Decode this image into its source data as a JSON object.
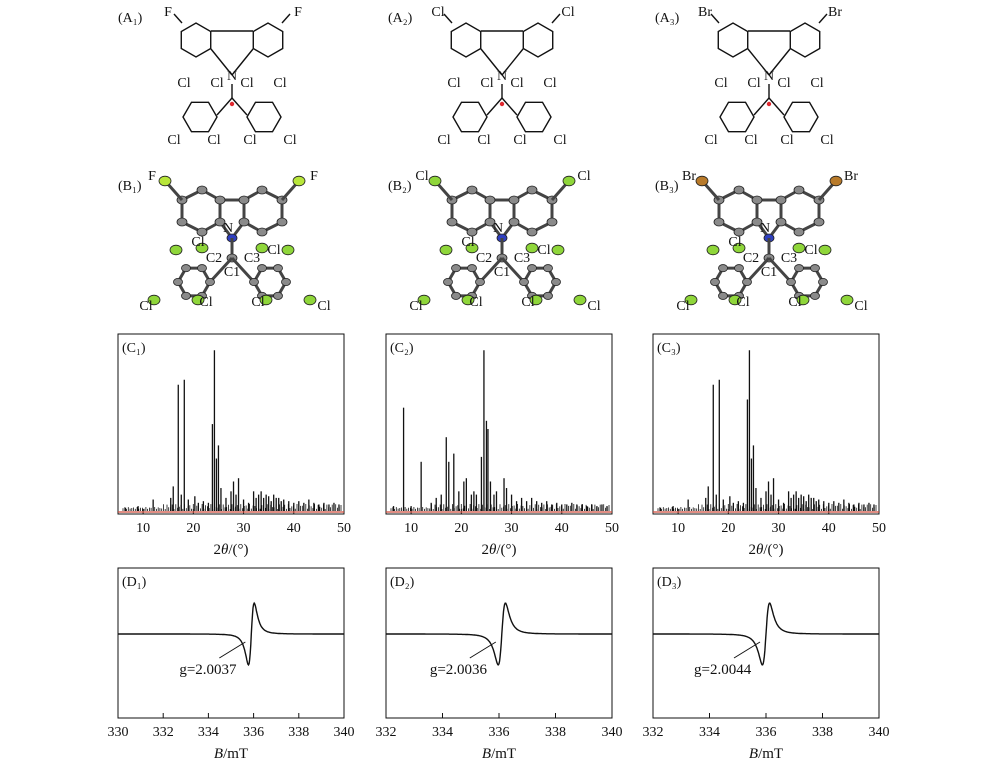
{
  "panels": {
    "A": [
      {
        "label": "(A₁)",
        "halogen": "F"
      },
      {
        "label": "(A₂)",
        "halogen": "Cl"
      },
      {
        "label": "(A₃)",
        "halogen": "Br"
      }
    ],
    "B": [
      {
        "label": "(B₁)",
        "halogen": "F",
        "halogen_color": "#b8e63a",
        "labels": [
          "N",
          "C2",
          "C1",
          "C3",
          "Cl",
          "Cl",
          "Cl",
          "Cl",
          "Cl",
          "Cl"
        ]
      },
      {
        "label": "(B₂)",
        "halogen": "Cl",
        "halogen_color": "#8fd63a",
        "labels": [
          "N",
          "C2",
          "C1",
          "C3",
          "Cl",
          "Cl",
          "Cl",
          "Cl",
          "Cl",
          "Cl"
        ]
      },
      {
        "label": "(B₃)",
        "halogen": "Br",
        "halogen_color": "#b87a2a",
        "labels": [
          "N",
          "C2",
          "C1",
          "C3",
          "Cl",
          "Cl",
          "Cl",
          "Cl",
          "Cl",
          "Cl"
        ]
      }
    ],
    "C": [
      {
        "label": "(C₁)"
      },
      {
        "label": "(C₂)"
      },
      {
        "label": "(C₃)"
      }
    ],
    "D": [
      {
        "label": "(D₁)",
        "g_label": "g=2.0037"
      },
      {
        "label": "(D₂)",
        "g_label": "g=2.0036"
      },
      {
        "label": "(D₃)",
        "g_label": "g=2.0044"
      }
    ]
  },
  "atoms": {
    "N": "N",
    "Cl": "Cl"
  },
  "chart_data": [
    {
      "type": "line",
      "panel": "C1",
      "xlabel_prefix": "2",
      "xlabel_theta": "θ",
      "xlabel_suffix": "/(°)",
      "xlim": [
        5,
        50
      ],
      "xticks": [
        10,
        20,
        30,
        40,
        50
      ],
      "peaks": [
        [
          6.5,
          0.02
        ],
        [
          9.0,
          0.03
        ],
        [
          12.0,
          0.07
        ],
        [
          15.5,
          0.08
        ],
        [
          16.0,
          0.15
        ],
        [
          17.0,
          0.77
        ],
        [
          17.6,
          0.1
        ],
        [
          18.2,
          0.8
        ],
        [
          19.0,
          0.07
        ],
        [
          20.3,
          0.09
        ],
        [
          21.0,
          0.05
        ],
        [
          22.0,
          0.06
        ],
        [
          23.0,
          0.05
        ],
        [
          23.8,
          0.53
        ],
        [
          24.2,
          0.98
        ],
        [
          24.6,
          0.32
        ],
        [
          25.0,
          0.4
        ],
        [
          25.5,
          0.14
        ],
        [
          26.5,
          0.08
        ],
        [
          27.5,
          0.12
        ],
        [
          28.0,
          0.18
        ],
        [
          28.5,
          0.1
        ],
        [
          29.0,
          0.2
        ],
        [
          30.0,
          0.07
        ],
        [
          31.0,
          0.05
        ],
        [
          32.0,
          0.12
        ],
        [
          32.5,
          0.08
        ],
        [
          33.0,
          0.1
        ],
        [
          33.5,
          0.12
        ],
        [
          34.0,
          0.08
        ],
        [
          34.5,
          0.1
        ],
        [
          35.0,
          0.09
        ],
        [
          35.5,
          0.06
        ],
        [
          36.0,
          0.1
        ],
        [
          36.5,
          0.08
        ],
        [
          37.0,
          0.08
        ],
        [
          37.5,
          0.06
        ],
        [
          38.0,
          0.07
        ],
        [
          39.0,
          0.06
        ],
        [
          40.0,
          0.05
        ],
        [
          41.0,
          0.06
        ],
        [
          42.0,
          0.05
        ],
        [
          43.0,
          0.07
        ],
        [
          44.0,
          0.05
        ],
        [
          45.0,
          0.04
        ],
        [
          46.0,
          0.05
        ],
        [
          47.0,
          0.04
        ],
        [
          48.0,
          0.05
        ],
        [
          49.0,
          0.04
        ]
      ]
    },
    {
      "type": "line",
      "panel": "C2",
      "xlabel_prefix": "2",
      "xlabel_theta": "θ",
      "xlabel_suffix": "/(°)",
      "xlim": [
        5,
        50
      ],
      "xticks": [
        10,
        20,
        30,
        40,
        50
      ],
      "peaks": [
        [
          6.5,
          0.03
        ],
        [
          8.5,
          0.63
        ],
        [
          10.0,
          0.03
        ],
        [
          12.0,
          0.3
        ],
        [
          14.0,
          0.05
        ],
        [
          15.0,
          0.08
        ],
        [
          16.0,
          0.1
        ],
        [
          17.0,
          0.45
        ],
        [
          17.5,
          0.3
        ],
        [
          18.5,
          0.35
        ],
        [
          19.5,
          0.12
        ],
        [
          20.5,
          0.18
        ],
        [
          21.0,
          0.2
        ],
        [
          22.0,
          0.1
        ],
        [
          22.5,
          0.12
        ],
        [
          23.0,
          0.1
        ],
        [
          24.0,
          0.33
        ],
        [
          24.5,
          0.98
        ],
        [
          25.0,
          0.55
        ],
        [
          25.3,
          0.5
        ],
        [
          25.8,
          0.18
        ],
        [
          26.5,
          0.1
        ],
        [
          27.0,
          0.12
        ],
        [
          28.5,
          0.2
        ],
        [
          29.0,
          0.14
        ],
        [
          30.0,
          0.1
        ],
        [
          31.0,
          0.06
        ],
        [
          32.0,
          0.08
        ],
        [
          33.0,
          0.06
        ],
        [
          34.0,
          0.08
        ],
        [
          35.0,
          0.06
        ],
        [
          36.0,
          0.05
        ],
        [
          37.0,
          0.06
        ],
        [
          38.0,
          0.04
        ],
        [
          39.0,
          0.05
        ],
        [
          40.0,
          0.04
        ],
        [
          41.0,
          0.04
        ],
        [
          42.0,
          0.05
        ],
        [
          43.0,
          0.04
        ],
        [
          44.0,
          0.04
        ],
        [
          45.0,
          0.03
        ],
        [
          46.0,
          0.04
        ],
        [
          47.0,
          0.03
        ],
        [
          48.0,
          0.04
        ],
        [
          49.0,
          0.03
        ]
      ]
    },
    {
      "type": "line",
      "panel": "C3",
      "xlabel_prefix": "2",
      "xlabel_theta": "θ",
      "xlabel_suffix": "/(°)",
      "xlim": [
        5,
        50
      ],
      "xticks": [
        10,
        20,
        30,
        40,
        50
      ],
      "peaks": [
        [
          6.5,
          0.02
        ],
        [
          9.0,
          0.03
        ],
        [
          12.0,
          0.07
        ],
        [
          15.5,
          0.08
        ],
        [
          16.0,
          0.15
        ],
        [
          17.0,
          0.77
        ],
        [
          17.6,
          0.1
        ],
        [
          18.2,
          0.8
        ],
        [
          19.0,
          0.07
        ],
        [
          20.3,
          0.09
        ],
        [
          21.0,
          0.05
        ],
        [
          22.0,
          0.06
        ],
        [
          23.0,
          0.05
        ],
        [
          23.8,
          0.68
        ],
        [
          24.2,
          0.98
        ],
        [
          24.6,
          0.32
        ],
        [
          25.0,
          0.4
        ],
        [
          25.5,
          0.14
        ],
        [
          26.5,
          0.08
        ],
        [
          27.5,
          0.12
        ],
        [
          28.0,
          0.18
        ],
        [
          28.5,
          0.1
        ],
        [
          29.0,
          0.2
        ],
        [
          30.0,
          0.07
        ],
        [
          31.0,
          0.05
        ],
        [
          32.0,
          0.12
        ],
        [
          32.5,
          0.08
        ],
        [
          33.0,
          0.1
        ],
        [
          33.5,
          0.12
        ],
        [
          34.0,
          0.08
        ],
        [
          34.5,
          0.1
        ],
        [
          35.0,
          0.09
        ],
        [
          35.5,
          0.06
        ],
        [
          36.0,
          0.1
        ],
        [
          36.5,
          0.08
        ],
        [
          37.0,
          0.08
        ],
        [
          37.5,
          0.06
        ],
        [
          38.0,
          0.07
        ],
        [
          39.0,
          0.06
        ],
        [
          40.0,
          0.05
        ],
        [
          41.0,
          0.06
        ],
        [
          42.0,
          0.05
        ],
        [
          43.0,
          0.07
        ],
        [
          44.0,
          0.05
        ],
        [
          45.0,
          0.04
        ],
        [
          46.0,
          0.05
        ],
        [
          47.0,
          0.04
        ],
        [
          48.0,
          0.05
        ],
        [
          49.0,
          0.04
        ]
      ]
    },
    {
      "type": "line",
      "panel": "D1",
      "xlabel_prefix": "B",
      "xlabel_suffix": "/mT",
      "xlim": [
        330,
        340
      ],
      "xticks": [
        330,
        332,
        334,
        336,
        338,
        340
      ],
      "center": 335.9,
      "width": 0.22,
      "amplitude": 0.98,
      "g_label": "g=2.0037"
    },
    {
      "type": "line",
      "panel": "D2",
      "xlabel_prefix": "B",
      "xlabel_suffix": "/mT",
      "xlim": [
        332,
        340
      ],
      "xticks": [
        332,
        334,
        336,
        338,
        340
      ],
      "center": 336.1,
      "width": 0.22,
      "amplitude": 0.98,
      "g_label": "g=2.0036"
    },
    {
      "type": "line",
      "panel": "D3",
      "xlabel_prefix": "B",
      "xlabel_suffix": "/mT",
      "xlim": [
        332,
        340
      ],
      "xticks": [
        332,
        334,
        336,
        338,
        340
      ],
      "center": 336.0,
      "width": 0.22,
      "amplitude": 0.98,
      "g_label": "g=2.0044"
    }
  ]
}
